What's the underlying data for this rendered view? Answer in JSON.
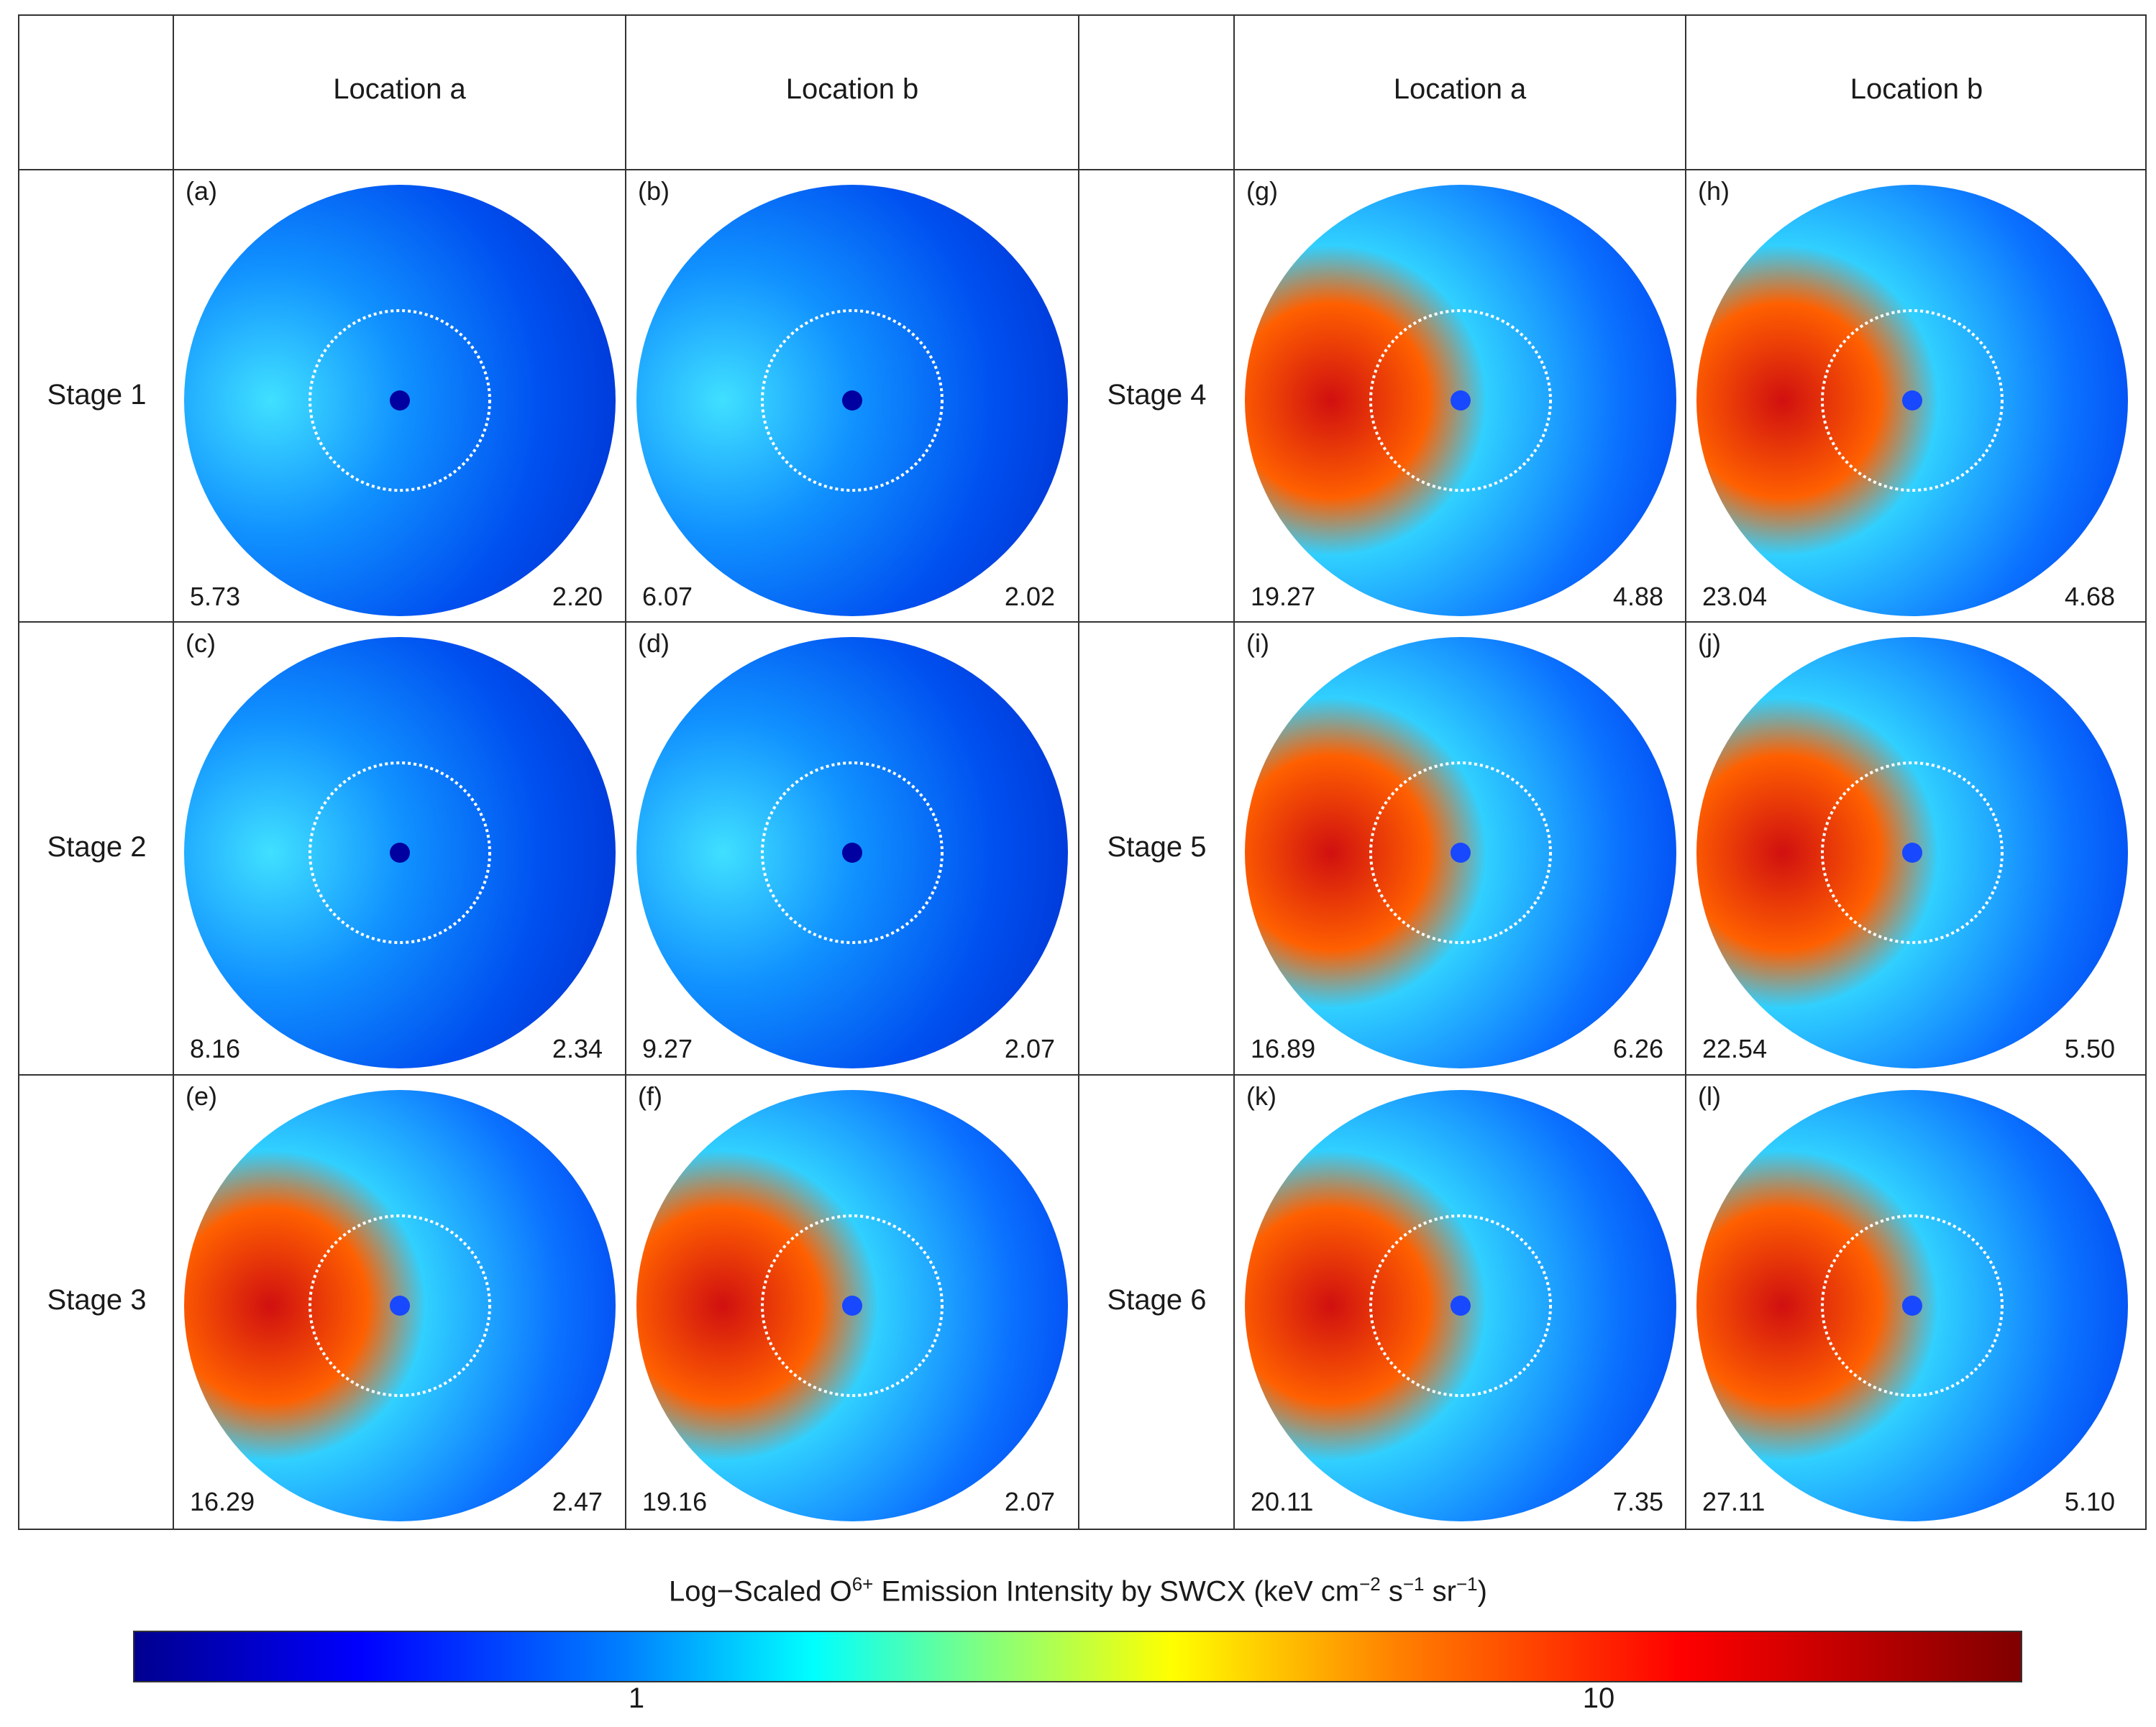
{
  "headers": {
    "col1": "Location a",
    "col2": "Location b",
    "col3": "Location a",
    "col4": "Location b"
  },
  "stages": [
    "Stage 1",
    "Stage 2",
    "Stage 3",
    "Stage 4",
    "Stage 5",
    "Stage 6"
  ],
  "panels": [
    {
      "label": "(a)",
      "max": "5.73",
      "min": "2.20"
    },
    {
      "label": "(b)",
      "max": "6.07",
      "min": "2.02"
    },
    {
      "label": "(c)",
      "max": "8.16",
      "min": "2.34"
    },
    {
      "label": "(d)",
      "max": "9.27",
      "min": "2.07"
    },
    {
      "label": "(e)",
      "max": "16.29",
      "min": "2.47"
    },
    {
      "label": "(f)",
      "max": "19.16",
      "min": "2.07"
    },
    {
      "label": "(g)",
      "max": "19.27",
      "min": "4.88"
    },
    {
      "label": "(h)",
      "max": "23.04",
      "min": "4.68"
    },
    {
      "label": "(i)",
      "max": "16.89",
      "min": "6.26"
    },
    {
      "label": "(j)",
      "max": "22.54",
      "min": "5.50"
    },
    {
      "label": "(k)",
      "max": "20.11",
      "min": "7.35"
    },
    {
      "label": "(l)",
      "max": "27.11",
      "min": "5.10"
    }
  ],
  "colorbar": {
    "title": "Log−Scaled O6+ Emission Intensity by SWCX (keV cm−2 s−1 sr−1)",
    "title_main": "Log−Scaled O",
    "title_sup1": "6+",
    "title_mid": " Emission Intensity by SWCX (keV cm",
    "title_sup2": "−2",
    "title_s": " s",
    "title_sup3": "−1",
    "title_sr": " sr",
    "title_sup4": "−1",
    "title_end": ")",
    "tick_labels": [
      "1",
      "10"
    ],
    "colors": [
      "#00008f",
      "#0000ff",
      "#0080ff",
      "#00ffff",
      "#80ff80",
      "#ffff00",
      "#ff8000",
      "#ff0000",
      "#800000"
    ]
  }
}
